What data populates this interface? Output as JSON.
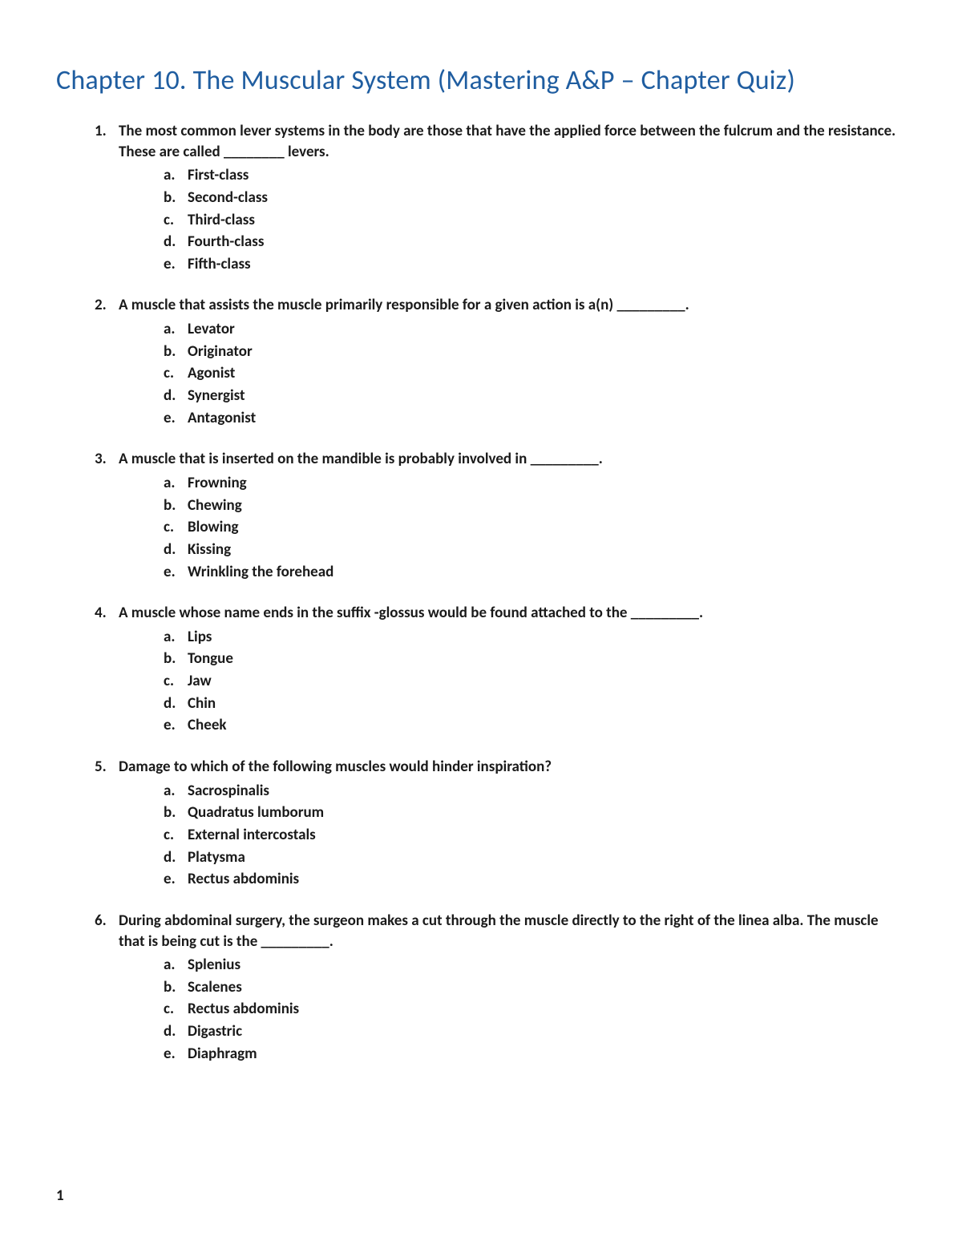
{
  "document": {
    "title": "Chapter 10. The Muscular System (Mastering A&P – Chapter Quiz)",
    "title_color": "#1f5da0",
    "title_fontsize": 34,
    "body_fontsize": 19,
    "body_font_weight": "bold",
    "body_color": "#1a1a1a",
    "background_color": "#ffffff",
    "page_number": "1",
    "questions": [
      {
        "text": "The most common lever systems in the body are those that have the applied force between the fulcrum and the resistance. These are called ________ levers.",
        "options": [
          "First-class",
          "Second-class",
          "Third-class",
          "Fourth-class",
          "Fifth-class"
        ]
      },
      {
        "text": "A muscle that assists the muscle primarily responsible for a given action is a(n) _________.",
        "options": [
          "Levator",
          "Originator",
          "Agonist",
          "Synergist",
          "Antagonist"
        ]
      },
      {
        "text": "A muscle that is inserted on the mandible is probably involved in _________.",
        "options": [
          "Frowning",
          "Chewing",
          "Blowing",
          "Kissing",
          "Wrinkling the forehead"
        ]
      },
      {
        "text": "A muscle whose name ends in the suffix -glossus would be found attached to the _________.",
        "options": [
          "Lips",
          "Tongue",
          "Jaw",
          "Chin",
          "Cheek"
        ]
      },
      {
        "text": "Damage to which of the following muscles would hinder inspiration?",
        "options": [
          "Sacrospinalis",
          "Quadratus lumborum",
          "External intercostals",
          "Platysma",
          "Rectus abdominis"
        ]
      },
      {
        "text": "During abdominal surgery, the surgeon makes a cut through the muscle directly to the right of the linea alba. The muscle that is being cut is the _________.",
        "options": [
          "Splenius",
          "Scalenes",
          "Rectus abdominis",
          "Digastric",
          "Diaphragm"
        ]
      }
    ]
  }
}
